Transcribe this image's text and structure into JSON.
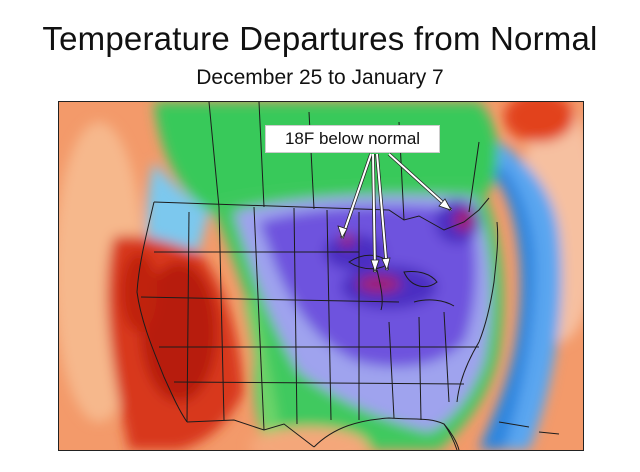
{
  "title": "Temperature Departures from Normal",
  "subtitle": "December 25 to January 7",
  "annotation": {
    "text": "18F below normal",
    "arrow_count": 4
  },
  "colors": {
    "warm_extreme": "#b81e0e",
    "warm_strong": "#e0441f",
    "warm_mid": "#f07b4a",
    "warm_light": "#f7b58a",
    "neutral_green": "#3fcb5c",
    "cool_light": "#86d1ef",
    "cool_mid": "#3f8ee6",
    "cold": "#7a5ae0",
    "cold_strong": "#5a33c9",
    "cold_extreme": "#a61f72",
    "boundary_lines": "#1c1c1c"
  }
}
